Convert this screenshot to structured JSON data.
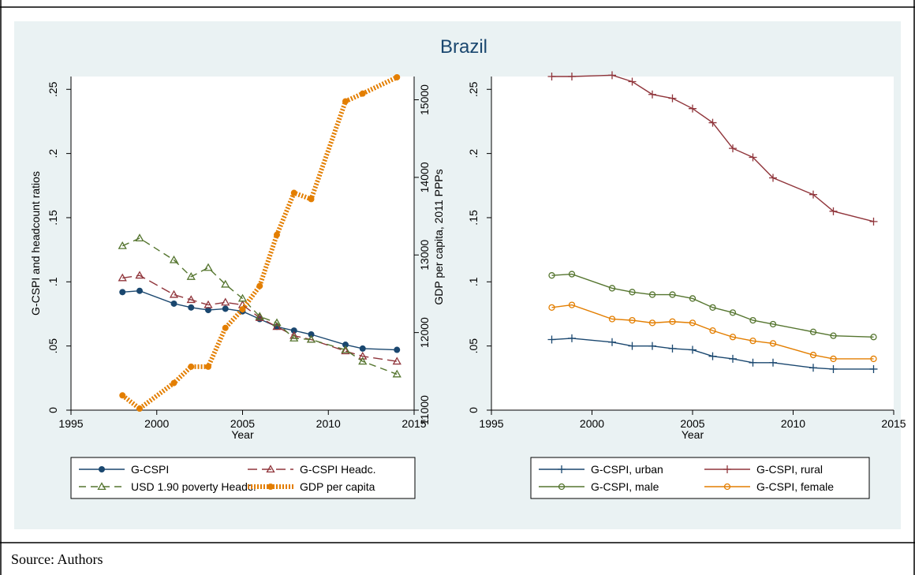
{
  "title": "Brazil",
  "source_note": "Source: Authors",
  "chart_data": [
    {
      "type": "line",
      "xlabel": "Year",
      "ylabel": "G-CSPI and headcount ratios",
      "y2label": "GDP per capita, 2011 PPPs",
      "xlim": [
        1995,
        2015
      ],
      "ylim": [
        0,
        0.26
      ],
      "y2lim": [
        11000,
        15300
      ],
      "xticks": [
        1995,
        2000,
        2005,
        2010,
        2015
      ],
      "yticks": [
        0,
        0.05,
        0.1,
        0.15,
        0.2,
        0.25
      ],
      "ytick_labels": [
        "0",
        ".05",
        ".1",
        ".15",
        ".2",
        ".25"
      ],
      "y2ticks": [
        11000,
        12000,
        13000,
        14000,
        15000
      ],
      "y2tick_labels": [
        "11000",
        "12000",
        "13000",
        "14000",
        "15000"
      ],
      "legend_position": "bottom",
      "series": [
        {
          "name": "G-CSPI",
          "axis": "left",
          "color": "#1a476f",
          "marker": "circle",
          "dash": "solid",
          "x": [
            1998,
            1999,
            2001,
            2002,
            2003,
            2004,
            2005,
            2006,
            2007,
            2008,
            2009,
            2011,
            2012,
            2014
          ],
          "values": [
            0.092,
            0.093,
            0.083,
            0.08,
            0.078,
            0.079,
            0.077,
            0.071,
            0.065,
            0.062,
            0.059,
            0.051,
            0.048,
            0.047
          ]
        },
        {
          "name": "G-CSPI Headc.",
          "axis": "left",
          "color": "#90353b",
          "marker": "triangle",
          "dash": "longdash",
          "x": [
            1998,
            1999,
            2001,
            2002,
            2003,
            2004,
            2005,
            2006,
            2007,
            2008,
            2009,
            2011,
            2012,
            2014
          ],
          "values": [
            0.103,
            0.105,
            0.09,
            0.086,
            0.082,
            0.084,
            0.082,
            0.072,
            0.065,
            0.058,
            0.055,
            0.046,
            0.042,
            0.038
          ]
        },
        {
          "name": "USD 1.90 poverty Headc.",
          "axis": "left",
          "color": "#55752f",
          "marker": "triangle",
          "dash": "dash",
          "x": [
            1998,
            1999,
            2001,
            2002,
            2003,
            2004,
            2005,
            2006,
            2007,
            2008,
            2009,
            2011,
            2012,
            2014
          ],
          "values": [
            0.128,
            0.134,
            0.117,
            0.104,
            0.111,
            0.098,
            0.087,
            0.073,
            0.068,
            0.056,
            0.055,
            0.047,
            0.038,
            0.028
          ]
        },
        {
          "name": "GDP per capita",
          "axis": "right",
          "color": "#e37e00",
          "marker": "circle",
          "dash": "dotted",
          "x": [
            1998,
            1999,
            2001,
            2002,
            2003,
            2004,
            2005,
            2006,
            2007,
            2008,
            2009,
            2011,
            2012,
            2014
          ],
          "values": [
            11190,
            11020,
            11350,
            11560,
            11560,
            12060,
            12300,
            12600,
            13260,
            13800,
            13720,
            14980,
            15080,
            15290
          ]
        }
      ]
    },
    {
      "type": "line",
      "xlabel": "Year",
      "ylabel": "",
      "xlim": [
        1995,
        2015
      ],
      "ylim": [
        0,
        0.26
      ],
      "xticks": [
        1995,
        2000,
        2005,
        2010,
        2015
      ],
      "yticks": [
        0,
        0.05,
        0.1,
        0.15,
        0.2,
        0.25
      ],
      "ytick_labels": [
        "0",
        ".05",
        ".1",
        ".15",
        ".2",
        ".25"
      ],
      "legend_position": "bottom",
      "series": [
        {
          "name": "G-CSPI, urban",
          "color": "#1a476f",
          "marker": "plus",
          "x": [
            1998,
            1999,
            2001,
            2002,
            2003,
            2004,
            2005,
            2006,
            2007,
            2008,
            2009,
            2011,
            2012,
            2014
          ],
          "values": [
            0.055,
            0.056,
            0.053,
            0.05,
            0.05,
            0.048,
            0.047,
            0.042,
            0.04,
            0.037,
            0.037,
            0.033,
            0.032,
            0.032
          ]
        },
        {
          "name": "G-CSPI, rural",
          "color": "#90353b",
          "marker": "plus",
          "x": [
            1998,
            1999,
            2001,
            2002,
            2003,
            2004,
            2005,
            2006,
            2007,
            2008,
            2009,
            2011,
            2012,
            2014
          ],
          "values": [
            0.26,
            0.26,
            0.261,
            0.256,
            0.246,
            0.243,
            0.235,
            0.224,
            0.204,
            0.197,
            0.181,
            0.168,
            0.155,
            0.147
          ]
        },
        {
          "name": "G-CSPI, male",
          "color": "#55752f",
          "marker": "hollow-circle",
          "x": [
            1998,
            1999,
            2001,
            2002,
            2003,
            2004,
            2005,
            2006,
            2007,
            2008,
            2009,
            2011,
            2012,
            2014
          ],
          "values": [
            0.105,
            0.106,
            0.095,
            0.092,
            0.09,
            0.09,
            0.087,
            0.08,
            0.076,
            0.07,
            0.067,
            0.061,
            0.058,
            0.057
          ]
        },
        {
          "name": "G-CSPI, female",
          "color": "#e37e00",
          "marker": "hollow-circle",
          "x": [
            1998,
            1999,
            2001,
            2002,
            2003,
            2004,
            2005,
            2006,
            2007,
            2008,
            2009,
            2011,
            2012,
            2014
          ],
          "values": [
            0.08,
            0.082,
            0.071,
            0.07,
            0.068,
            0.069,
            0.068,
            0.062,
            0.057,
            0.054,
            0.052,
            0.043,
            0.04,
            0.04
          ]
        }
      ]
    }
  ]
}
